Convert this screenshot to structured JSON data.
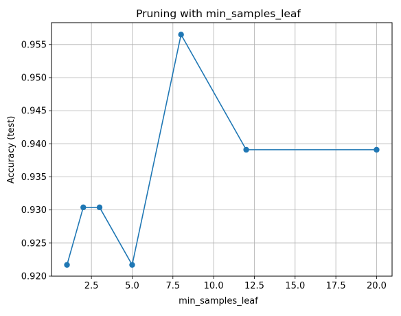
{
  "chart_data": {
    "type": "line",
    "title": "Pruning with min_samples_leaf",
    "xlabel": "min_samples_leaf",
    "ylabel": "Accuracy (test)",
    "xlim": [
      0.05,
      20.95
    ],
    "ylim": [
      0.92,
      0.9583
    ],
    "xticks": [
      2.5,
      5.0,
      7.5,
      10.0,
      12.5,
      15.0,
      17.5,
      20.0
    ],
    "xtick_labels": [
      "2.5",
      "5.0",
      "7.5",
      "10.0",
      "12.5",
      "15.0",
      "17.5",
      "20.0"
    ],
    "yticks": [
      0.92,
      0.925,
      0.93,
      0.935,
      0.94,
      0.945,
      0.95,
      0.955
    ],
    "ytick_labels": [
      "0.920",
      "0.925",
      "0.930",
      "0.935",
      "0.940",
      "0.945",
      "0.950",
      "0.955"
    ],
    "grid": true,
    "x": [
      1,
      2,
      3,
      5,
      8,
      12,
      20
    ],
    "series": [
      {
        "values": [
          0.9217,
          0.9304,
          0.9304,
          0.9217,
          0.9565,
          0.9391,
          0.9391
        ],
        "color": "#1f77b4",
        "marker": "circle"
      }
    ]
  }
}
